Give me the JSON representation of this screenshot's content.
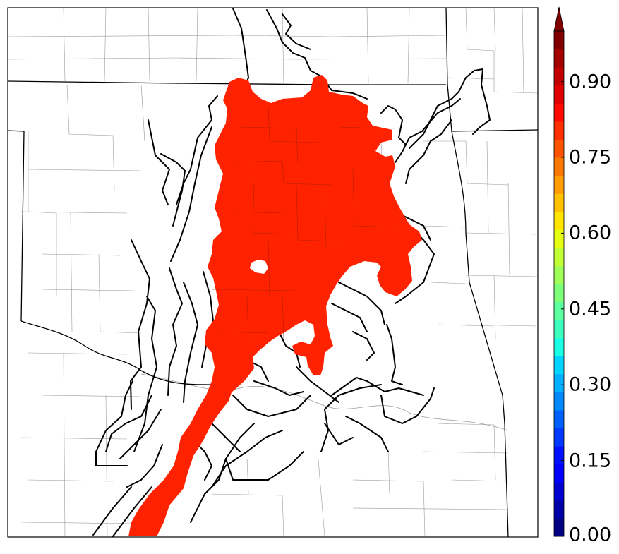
{
  "map": {
    "fill_color": "#ff2200",
    "outline_color": "#000000",
    "border_color": "#000000",
    "county_color": "#9a9a9a"
  },
  "colorbar": {
    "min": 0.0,
    "max": 1.0,
    "step": 0.025,
    "extend": "max",
    "orientation": "vertical",
    "placement": "right",
    "tick_values": [
      0.0,
      0.15,
      0.3,
      0.45,
      0.6,
      0.75,
      0.9
    ],
    "ticks": [
      "0.00",
      "0.15",
      "0.30",
      "0.45",
      "0.60",
      "0.75",
      "0.90"
    ],
    "colors": [
      "#000080",
      "#0000a8",
      "#0000d1",
      "#0000fa",
      "#0010ff",
      "#0038ff",
      "#0060ff",
      "#0088ff",
      "#00b0ff",
      "#00d4ff",
      "#1affe4",
      "#3dffbe",
      "#5bffa0",
      "#7eff79",
      "#a0ff57",
      "#c3ff34",
      "#e4ff13",
      "#ffe500",
      "#ffc100",
      "#ff9c00",
      "#ff7800",
      "#ff5300",
      "#ff2f00",
      "#ff0a00",
      "#e10000",
      "#c30000",
      "#a40000",
      "#800000"
    ]
  }
}
